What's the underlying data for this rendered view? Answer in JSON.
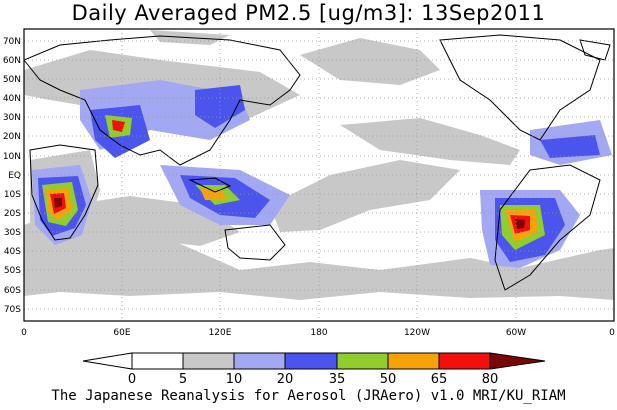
{
  "title": "Daily Averaged PM2.5 [ug/m3]: 13Sep2011",
  "footer": "The Japanese Reanalysis for Aerosol (JRAero) v1.0 MRI/KU_RIAM",
  "lat_labels": [
    "70N",
    "60N",
    "50N",
    "40N",
    "30N",
    "20N",
    "10N",
    "EQ",
    "10S",
    "20S",
    "30S",
    "40S",
    "50S",
    "60S",
    "70S"
  ],
  "lon_labels": [
    "0",
    "60E",
    "120E",
    "180",
    "120W",
    "60W",
    "0"
  ],
  "colorbar": {
    "levels": [
      "0",
      "5",
      "10",
      "20",
      "35",
      "50",
      "65",
      "80"
    ],
    "colors": [
      "#ffffff",
      "#c8c8c8",
      "#a3a8f2",
      "#4b55ee",
      "#8fce2c",
      "#f7a10b",
      "#f20f0c",
      "#7a0606"
    ]
  }
}
